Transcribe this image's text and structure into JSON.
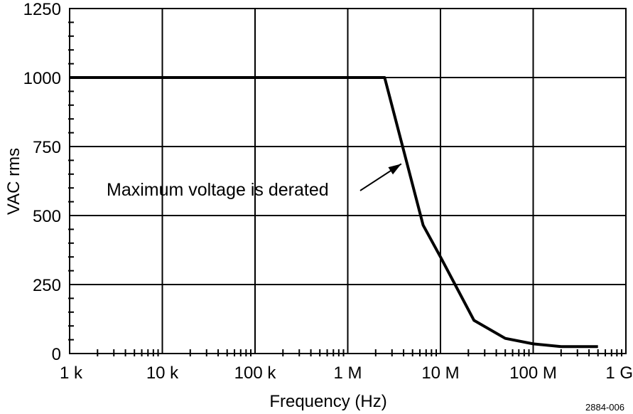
{
  "chart_data": {
    "type": "line",
    "title": "",
    "xlabel": "Frequency (Hz)",
    "ylabel": "VAC rms",
    "x_scale": "log",
    "xlim": [
      1000,
      1000000000
    ],
    "ylim": [
      0,
      1250
    ],
    "x_ticks": [
      {
        "value": 1000,
        "label": "1 k"
      },
      {
        "value": 10000,
        "label": "10 k"
      },
      {
        "value": 100000,
        "label": "100 k"
      },
      {
        "value": 1000000,
        "label": "1 M"
      },
      {
        "value": 10000000,
        "label": "10 M"
      },
      {
        "value": 100000000,
        "label": "100 M"
      },
      {
        "value": 1000000000,
        "label": "1 G"
      }
    ],
    "y_ticks": [
      {
        "value": 0,
        "label": "0"
      },
      {
        "value": 250,
        "label": "250"
      },
      {
        "value": 500,
        "label": "500"
      },
      {
        "value": 750,
        "label": "750"
      },
      {
        "value": 1000,
        "label": "1000"
      },
      {
        "value": 1250,
        "label": "1250"
      }
    ],
    "grid": true,
    "series": [
      {
        "points": [
          {
            "x": 1000,
            "y": 1000
          },
          {
            "x": 2500000,
            "y": 1000
          },
          {
            "x": 6500000,
            "y": 465
          },
          {
            "x": 10000000,
            "y": 350
          },
          {
            "x": 23000000,
            "y": 120
          },
          {
            "x": 50000000,
            "y": 55
          },
          {
            "x": 100000000,
            "y": 35
          },
          {
            "x": 200000000,
            "y": 25
          },
          {
            "x": 500000000,
            "y": 25
          }
        ]
      }
    ],
    "annotations": [
      {
        "text": "Maximum voltage is derated",
        "points_to": {
          "x": 4200000,
          "y": 700
        }
      }
    ],
    "figure_id": "2884-006"
  }
}
